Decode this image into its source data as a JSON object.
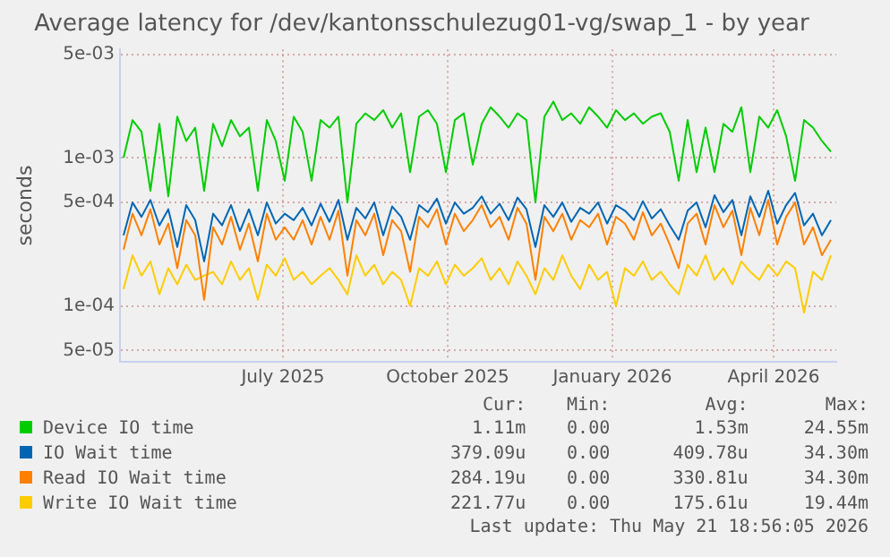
{
  "chart_data": {
    "type": "line",
    "title": "Average latency for /dev/kantonsschulezug01-vg/swap_1 - by year",
    "ylabel": "seconds",
    "x": [
      "2025-04-18",
      "2025-04-23",
      "2025-04-28",
      "2025-05-03",
      "2025-05-08",
      "2025-05-13",
      "2025-05-18",
      "2025-05-23",
      "2025-05-28",
      "2025-06-02",
      "2025-06-07",
      "2025-06-12",
      "2025-06-17",
      "2025-06-22",
      "2025-06-27",
      "2025-07-02",
      "2025-07-07",
      "2025-07-12",
      "2025-07-17",
      "2025-07-22",
      "2025-07-27",
      "2025-08-01",
      "2025-08-06",
      "2025-08-11",
      "2025-08-16",
      "2025-08-21",
      "2025-08-26",
      "2025-08-31",
      "2025-09-05",
      "2025-09-10",
      "2025-09-15",
      "2025-09-20",
      "2025-09-25",
      "2025-09-30",
      "2025-10-05",
      "2025-10-10",
      "2025-10-15",
      "2025-10-20",
      "2025-10-25",
      "2025-10-30",
      "2025-11-04",
      "2025-11-09",
      "2025-11-14",
      "2025-11-19",
      "2025-11-24",
      "2025-11-29",
      "2025-12-04",
      "2025-12-09",
      "2025-12-14",
      "2025-12-19",
      "2025-12-24",
      "2025-12-29",
      "2026-01-03",
      "2026-01-08",
      "2026-01-13",
      "2026-01-18",
      "2026-01-23",
      "2026-01-28",
      "2026-02-02",
      "2026-02-07",
      "2026-02-12",
      "2026-02-17",
      "2026-02-22",
      "2026-02-27",
      "2026-03-04",
      "2026-03-09",
      "2026-03-14",
      "2026-03-19",
      "2026-03-24",
      "2026-03-29",
      "2026-04-03",
      "2026-04-08",
      "2026-04-13",
      "2026-04-18",
      "2026-04-23",
      "2026-04-28",
      "2026-05-03",
      "2026-05-08",
      "2026-05-13",
      "2026-05-18"
    ],
    "series": [
      {
        "name": "Device IO time",
        "color": "#00cc00",
        "values": [
          0.001,
          0.0018,
          0.0015,
          0.0006,
          0.0017,
          0.00055,
          0.0019,
          0.0013,
          0.0016,
          0.0006,
          0.0017,
          0.0012,
          0.0018,
          0.0014,
          0.0016,
          0.0006,
          0.0018,
          0.0013,
          0.0007,
          0.0019,
          0.0015,
          0.0007,
          0.0018,
          0.0016,
          0.0019,
          0.0005,
          0.0017,
          0.002,
          0.0018,
          0.0021,
          0.0016,
          0.002,
          0.0008,
          0.0019,
          0.0021,
          0.0017,
          0.0008,
          0.0018,
          0.002,
          0.0009,
          0.0017,
          0.0022,
          0.0019,
          0.0016,
          0.002,
          0.0018,
          0.0005,
          0.0019,
          0.0024,
          0.0018,
          0.002,
          0.0017,
          0.0022,
          0.0019,
          0.0016,
          0.0021,
          0.0018,
          0.002,
          0.0017,
          0.0019,
          0.002,
          0.0015,
          0.0007,
          0.0018,
          0.0008,
          0.0016,
          0.0008,
          0.0017,
          0.0015,
          0.0022,
          0.0008,
          0.0019,
          0.0016,
          0.0021,
          0.0014,
          0.0007,
          0.0018,
          0.0016,
          0.0013,
          0.0011
        ]
      },
      {
        "name": "IO Wait time",
        "color": "#0066b3",
        "values": [
          0.0003,
          0.0005,
          0.0004,
          0.00052,
          0.00035,
          0.00045,
          0.00025,
          0.00048,
          0.00038,
          0.0002,
          0.00042,
          0.00035,
          0.00048,
          0.00032,
          0.00045,
          0.0003,
          0.0005,
          0.00036,
          0.00042,
          0.00038,
          0.00046,
          0.00035,
          0.00049,
          0.00037,
          0.00052,
          0.00028,
          0.00046,
          0.00039,
          0.0005,
          0.0003,
          0.00047,
          0.0004,
          0.00028,
          0.00048,
          0.00043,
          0.00053,
          0.00036,
          0.0005,
          0.00042,
          0.00046,
          0.00055,
          0.00042,
          0.00049,
          0.00038,
          0.00054,
          0.00045,
          0.00025,
          0.00048,
          0.0004,
          0.0005,
          0.00037,
          0.00046,
          0.00042,
          0.0005,
          0.00036,
          0.00048,
          0.00044,
          0.00038,
          0.00051,
          0.00039,
          0.00045,
          0.00035,
          0.00028,
          0.00044,
          0.0005,
          0.00034,
          0.00056,
          0.00043,
          0.00052,
          0.0003,
          0.00055,
          0.0004,
          0.0006,
          0.00036,
          0.00048,
          0.00058,
          0.00035,
          0.00042,
          0.0003,
          0.00038
        ]
      },
      {
        "name": "Read IO Wait time",
        "color": "#ff8000",
        "values": [
          0.00024,
          0.00042,
          0.0003,
          0.00045,
          0.00026,
          0.00036,
          0.00018,
          0.00038,
          0.0003,
          0.00011,
          0.00034,
          0.00026,
          0.0004,
          0.00024,
          0.00036,
          0.0002,
          0.00042,
          0.00028,
          0.00034,
          0.00028,
          0.00038,
          0.00026,
          0.0004,
          0.00028,
          0.00044,
          0.00016,
          0.00038,
          0.0003,
          0.00042,
          0.00022,
          0.00038,
          0.00032,
          0.00017,
          0.0004,
          0.00034,
          0.00045,
          0.00026,
          0.00042,
          0.00032,
          0.00038,
          0.00048,
          0.00034,
          0.0004,
          0.00028,
          0.00046,
          0.00036,
          0.00015,
          0.0004,
          0.00032,
          0.00042,
          0.00028,
          0.00038,
          0.00034,
          0.00042,
          0.00026,
          0.0004,
          0.00036,
          0.00028,
          0.00043,
          0.0003,
          0.00036,
          0.00026,
          0.00018,
          0.00036,
          0.00042,
          0.00026,
          0.00048,
          0.00034,
          0.00044,
          0.00022,
          0.00046,
          0.0003,
          0.00052,
          0.00026,
          0.0004,
          0.0005,
          0.00026,
          0.00034,
          0.00022,
          0.00028
        ]
      },
      {
        "name": "Write IO Wait time",
        "color": "#ffcc00",
        "values": [
          0.00013,
          0.00022,
          0.00016,
          0.0002,
          0.00012,
          0.00018,
          0.00014,
          0.00019,
          0.00015,
          0.00016,
          0.00017,
          0.00014,
          0.0002,
          0.00015,
          0.00018,
          0.00011,
          0.00019,
          0.00016,
          0.00021,
          0.00015,
          0.00017,
          0.00014,
          0.00016,
          0.00018,
          0.00015,
          0.00012,
          0.00022,
          0.00016,
          0.00019,
          0.00014,
          0.00017,
          0.00015,
          0.0001,
          0.00018,
          0.00016,
          0.0002,
          0.00014,
          0.00019,
          0.00016,
          0.00018,
          0.00021,
          0.00015,
          0.00018,
          0.00014,
          0.0002,
          0.00016,
          0.00012,
          0.00018,
          0.00015,
          0.00022,
          0.00016,
          0.00013,
          0.00019,
          0.00015,
          0.00017,
          0.0001,
          0.00018,
          0.00016,
          0.0002,
          0.00015,
          0.00017,
          0.00014,
          0.00012,
          0.00019,
          0.00016,
          0.00022,
          0.00015,
          0.00018,
          0.00014,
          0.0002,
          0.00017,
          0.00015,
          0.00019,
          0.00016,
          0.0002,
          0.00018,
          9e-05,
          0.00017,
          0.00015,
          0.00022
        ]
      }
    ],
    "log": "y",
    "ylim": [
      4.2e-05,
      0.0054
    ],
    "yticks": [
      {
        "value": 5e-05,
        "label": "5e-05"
      },
      {
        "value": 0.0001,
        "label": "1e-04"
      },
      {
        "value": 0.0005,
        "label": "5e-04"
      },
      {
        "value": 0.001,
        "label": "1e-03"
      },
      {
        "value": 0.005,
        "label": "5e-03"
      }
    ],
    "xlim": [
      "2025-04-16",
      "2026-05-21"
    ],
    "xticks": [
      {
        "value": "2025-07-16",
        "label": "July 2025"
      },
      {
        "value": "2025-10-16",
        "label": "October 2025"
      },
      {
        "value": "2026-01-16",
        "label": "January 2026"
      },
      {
        "value": "2026-04-16",
        "label": "April 2026"
      }
    ],
    "grid": true,
    "legend": "bottom",
    "marker": "none",
    "line_style": "solid",
    "annotations": [
      "Cur:",
      "Min:",
      "Avg:",
      "Max:",
      "1.11m",
      "0.00",
      "1.53m",
      "24.55m",
      "379.09u",
      "0.00",
      "409.78u",
      "34.30m",
      "284.19u",
      "0.00",
      "330.81u",
      "34.30m",
      "221.77u",
      "0.00",
      "175.61u",
      "19.44m",
      "Last update: Thu May 21 18:56:05 2026"
    ]
  }
}
